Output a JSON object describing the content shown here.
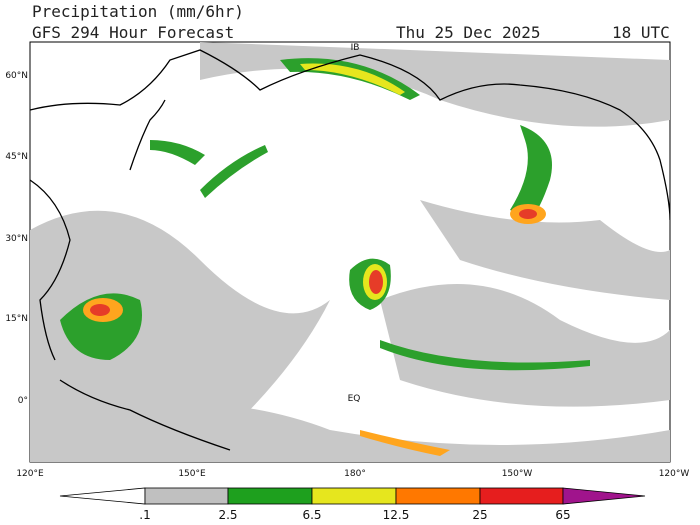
{
  "header": {
    "title": "Precipitation (mm/6hr)",
    "subtitle": "GFS 294 Hour Forecast",
    "date": "Thu 25 Dec 2025",
    "time": "18 UTC"
  },
  "map": {
    "lat_labels": [
      "60°N",
      "45°N",
      "30°N",
      "15°N",
      "0°"
    ],
    "lon_labels": [
      "120°E",
      "150°E",
      "180°",
      "150°W",
      "120°W"
    ],
    "place_labels": [
      "IB",
      "EQ"
    ]
  },
  "colorbar": {
    "labels": [
      ".1",
      "2.5",
      "6.5",
      "12.5",
      "25",
      "65"
    ]
  }
}
